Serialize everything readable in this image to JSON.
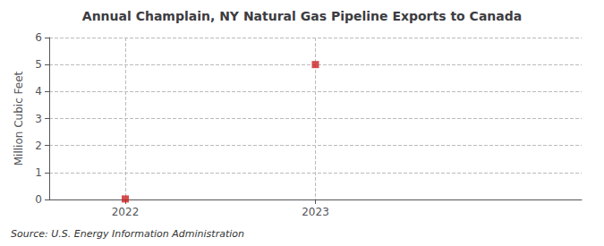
{
  "chart_data": {
    "type": "scatter",
    "title": "Annual Champlain, NY Natural Gas Pipeline Exports to Canada",
    "ylabel": "Million Cubic Feet",
    "source": "Source: U.S. Energy Information Administration",
    "x": [
      2022,
      2023
    ],
    "values": [
      0.02,
      5.0
    ],
    "color": "#cc2222",
    "marker": "square",
    "xlim": [
      2021.6,
      2024.4
    ],
    "xticks": [
      2022,
      2023
    ],
    "ylim": [
      0,
      6
    ],
    "yticks": [
      0,
      1,
      2,
      3,
      4,
      5,
      6
    ],
    "grid": true
  }
}
